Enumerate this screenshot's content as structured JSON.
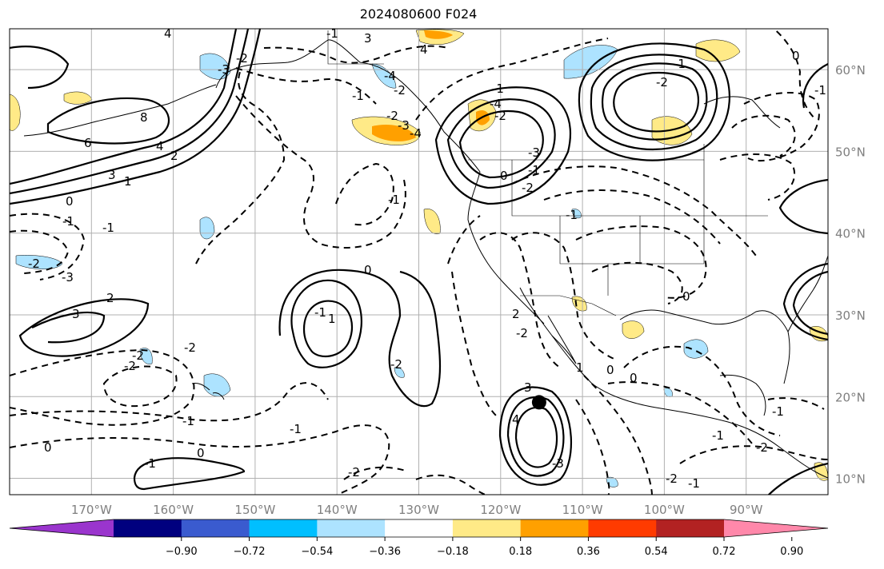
{
  "title": "2024080600 F024",
  "map": {
    "lon_range": [
      -180,
      -80
    ],
    "lat_range": [
      8,
      65
    ],
    "lon_ticks": [
      "170°W",
      "160°W",
      "150°W",
      "140°W",
      "130°W",
      "120°W",
      "110°W",
      "100°W",
      "90°W"
    ],
    "lat_ticks": [
      "60°N",
      "50°N",
      "40°N",
      "30°N",
      "20°N",
      "10°N"
    ],
    "grid": true,
    "storm_marker": {
      "lon": -115.3,
      "lat": 19.3
    },
    "contour_labels": [
      "4",
      "3",
      "4",
      "-1",
      "-2",
      "-3",
      "-4",
      "-2",
      "-1",
      "-2",
      "-3",
      "-4",
      "8",
      "6",
      "4",
      "3",
      "2",
      "1",
      "0",
      "-1",
      "-2",
      "-3",
      "-1",
      "-2",
      "0",
      "-1",
      "0",
      "-1",
      "-2",
      "-3",
      "-1",
      "-2",
      "-2",
      "-1",
      "0",
      "-2",
      "-2",
      "-1",
      "1",
      "2",
      "3",
      "4",
      "3",
      "2",
      "1",
      "0",
      "0",
      "0",
      "-1",
      "-2",
      "-1",
      "-1",
      "-2",
      "-1",
      "-1",
      "0",
      "-2",
      "-1",
      "-2",
      "-3",
      "-4",
      "-2",
      "-1",
      "0",
      "-1"
    ],
    "contour_styles": {
      "positive": "solid",
      "negative": "dashed"
    }
  },
  "colorbar": {
    "colors": [
      "#9a35cd",
      "#00007f",
      "#3a5bcf",
      "#00bfff",
      "#ade3ff",
      "#ffffff",
      "#ffea87",
      "#ffa000",
      "#ff3b00",
      "#b22222",
      "#ff88aa"
    ],
    "tick_labels": [
      "−0.90",
      "−0.72",
      "−0.54",
      "−0.36",
      "−0.18",
      "0.18",
      "0.36",
      "0.54",
      "0.72",
      "0.90"
    ],
    "extend": "both"
  }
}
